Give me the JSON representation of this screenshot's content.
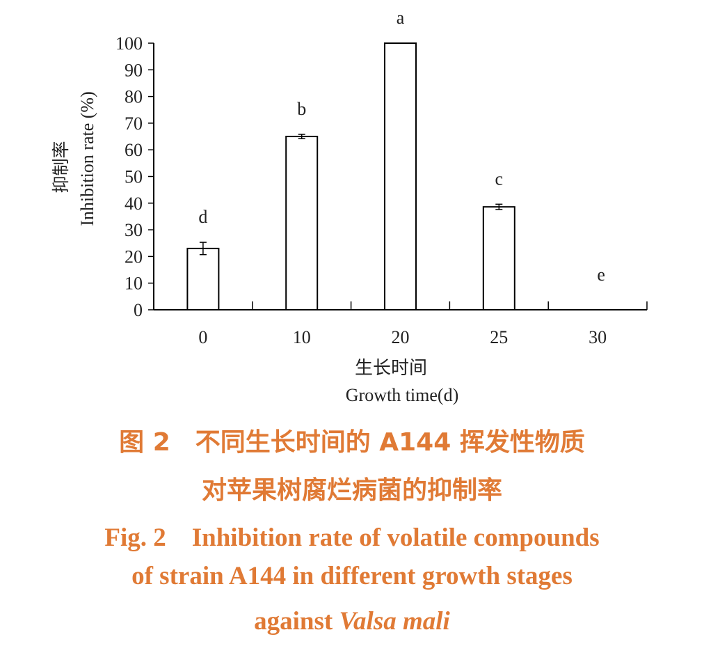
{
  "chart_data": {
    "type": "bar",
    "categories": [
      "0",
      "10",
      "20",
      "25",
      "30"
    ],
    "values": [
      23,
      65,
      100,
      38.6,
      0
    ],
    "errors": [
      2.3,
      0.8,
      0,
      1.0,
      0
    ],
    "significance_letters": [
      "d",
      "b",
      "a",
      "c",
      "e"
    ],
    "ylabel_cn": "抑制率",
    "ylabel": "Inhibition rate (%)",
    "xlabel_cn": "生长时间",
    "xlabel": "Growth time(d)",
    "ylim": [
      0,
      100
    ],
    "yticks": [
      "0",
      "10",
      "20",
      "30",
      "40",
      "50",
      "60",
      "70",
      "80",
      "90",
      "100"
    ],
    "grid": false,
    "colors": {
      "bar_fill": "#ffffff",
      "bar_stroke": "#000000"
    }
  },
  "caption": {
    "cn_line1": "图 2　不同生长时间的 A144 挥发性物质",
    "cn_line2": "对苹果树腐烂病菌的抑制率",
    "en_line1": "Fig. 2　Inhibition rate of volatile compounds",
    "en_line2": "of strain A144 in different growth stages",
    "en_line3_prefix": "against ",
    "en_line3_species": "Valsa mali",
    "color": "#e07a35"
  }
}
